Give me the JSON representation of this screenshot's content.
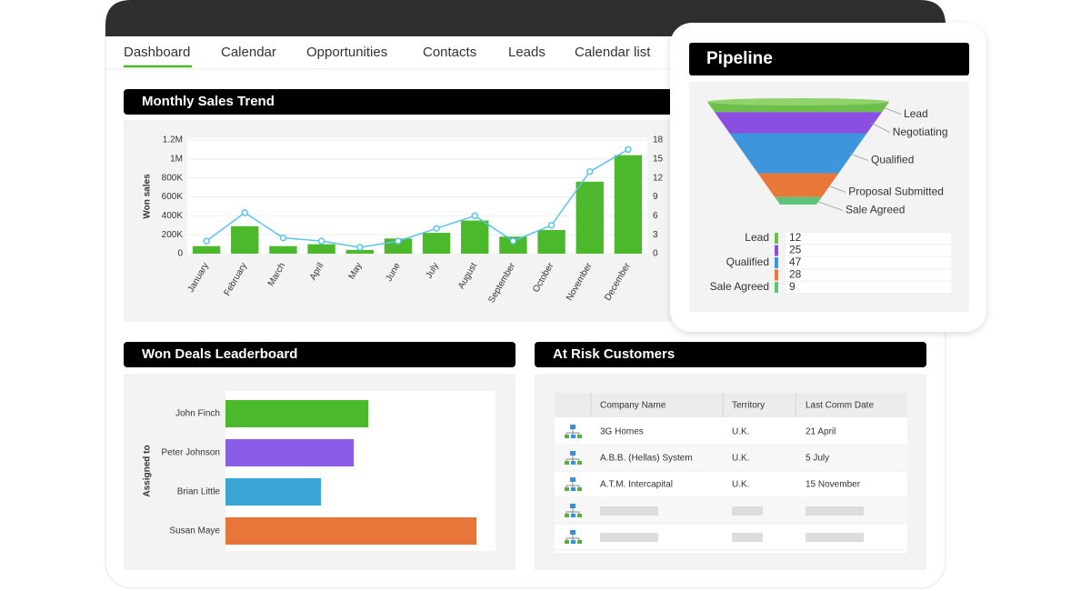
{
  "nav": {
    "tabs": [
      "Dashboard",
      "Calendar",
      "Opportunities",
      "Contacts",
      "Leads",
      "Calendar list"
    ]
  },
  "chart_data": [
    {
      "type": "combo",
      "title": "Monthly Sales Trend",
      "y_label": "Won sales",
      "categories": [
        "January",
        "February",
        "March",
        "April",
        "May",
        "June",
        "July",
        "August",
        "September",
        "October",
        "November",
        "December"
      ],
      "series": [
        {
          "type": "bar",
          "color": "#4cb82c",
          "values": [
            80000,
            290000,
            80000,
            100000,
            40000,
            160000,
            220000,
            350000,
            180000,
            250000,
            760000,
            1040000
          ]
        },
        {
          "type": "line",
          "axis": "y2",
          "color": "#5bc3ea",
          "values": [
            2,
            6.5,
            2.5,
            2,
            1,
            2,
            4,
            6,
            2,
            4.5,
            13,
            16.5
          ]
        }
      ],
      "ylim": [
        0,
        1200000
      ],
      "yticks": [
        0,
        {
          "value": 200000,
          "label": "200K"
        },
        {
          "value": 400000,
          "label": "400K"
        },
        {
          "value": 600000,
          "label": "600K"
        },
        {
          "value": 800000,
          "label": "800K"
        },
        {
          "value": 1000000,
          "label": "1M"
        },
        {
          "value": 1200000,
          "label": "1.2M"
        }
      ],
      "y2lim": [
        0,
        18
      ],
      "y2ticks": [
        0,
        3,
        6,
        9,
        12,
        15,
        18
      ],
      "grid": true
    },
    {
      "type": "funnel",
      "title": "Pipeline",
      "categories": [
        "Lead",
        "Negotiating",
        "Qualified",
        "Proposal Submitted",
        "Sale Agreed"
      ],
      "values": [
        12,
        25,
        47,
        28,
        9
      ],
      "colors": [
        "#6cbf4a",
        "#8a4fe0",
        "#3d96dc",
        "#e8783a",
        "#5fc47a"
      ]
    },
    {
      "type": "hbar",
      "title": "Won Deals Leaderboard",
      "y_label": "Assigned to",
      "categories": [
        "John Finch",
        "Peter Johnson",
        "Brian Little",
        "Susan Maye"
      ],
      "values": [
        157,
        141,
        105,
        276
      ],
      "colors": [
        "#4cb82c",
        "#8b5ce8",
        "#3ba5d6",
        "#e8763a"
      ]
    }
  ],
  "table": {
    "title": "At Risk Customers",
    "columns": [
      "Company Name",
      "Territory",
      "Last Comm Date"
    ],
    "rows": [
      [
        "3G Homes",
        "U.K.",
        "21 April"
      ],
      [
        "A.B.B. (Hellas) System",
        "U.K.",
        "5 July"
      ],
      [
        "A.T.M. Intercapital",
        "U.K.",
        "15 November"
      ]
    ]
  }
}
